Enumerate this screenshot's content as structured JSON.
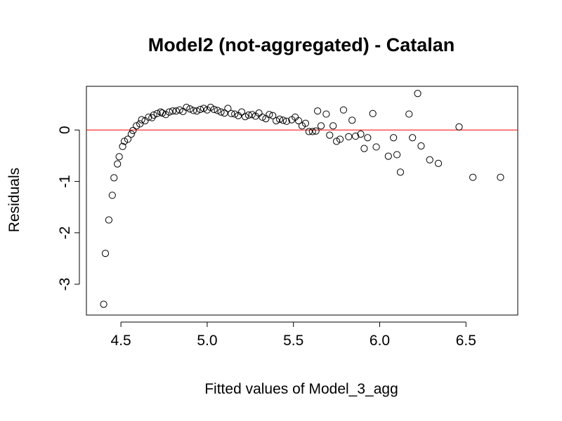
{
  "chart_data": {
    "type": "scatter",
    "title": "Model2 (not-aggregated) - Catalan",
    "xlabel": "Fitted values of Model_3_agg",
    "ylabel": "Residuals",
    "xlim": [
      4.3,
      6.8
    ],
    "ylim": [
      -3.6,
      0.85
    ],
    "x_ticks": [
      4.5,
      5.0,
      5.5,
      6.0,
      6.5
    ],
    "x_tick_labels": [
      "4.5",
      "5.0",
      "5.5",
      "6.0",
      "6.5"
    ],
    "y_ticks": [
      -3,
      -2,
      -1,
      0
    ],
    "y_tick_labels": [
      "-3",
      "-2",
      "-1",
      "0"
    ],
    "grid": false,
    "legend": "none",
    "reference_line": {
      "y": 0,
      "color": "#ff0000"
    },
    "marker_color": "#000000",
    "points": [
      [
        4.4,
        -3.39
      ],
      [
        4.41,
        -2.4
      ],
      [
        4.43,
        -1.75
      ],
      [
        4.45,
        -1.27
      ],
      [
        4.46,
        -0.93
      ],
      [
        4.48,
        -0.66
      ],
      [
        4.49,
        -0.52
      ],
      [
        4.51,
        -0.32
      ],
      [
        4.52,
        -0.22
      ],
      [
        4.54,
        -0.18
      ],
      [
        4.56,
        -0.08
      ],
      [
        4.57,
        -0.01
      ],
      [
        4.59,
        0.08
      ],
      [
        4.61,
        0.12
      ],
      [
        4.62,
        0.2
      ],
      [
        4.64,
        0.18
      ],
      [
        4.66,
        0.25
      ],
      [
        4.68,
        0.24
      ],
      [
        4.69,
        0.29
      ],
      [
        4.71,
        0.32
      ],
      [
        4.73,
        0.35
      ],
      [
        4.74,
        0.33
      ],
      [
        4.76,
        0.3
      ],
      [
        4.78,
        0.35
      ],
      [
        4.8,
        0.37
      ],
      [
        4.82,
        0.37
      ],
      [
        4.84,
        0.39
      ],
      [
        4.86,
        0.36
      ],
      [
        4.88,
        0.44
      ],
      [
        4.9,
        0.41
      ],
      [
        4.92,
        0.38
      ],
      [
        4.94,
        0.37
      ],
      [
        4.96,
        0.4
      ],
      [
        4.98,
        0.42
      ],
      [
        5.0,
        0.39
      ],
      [
        5.02,
        0.44
      ],
      [
        5.04,
        0.4
      ],
      [
        5.06,
        0.38
      ],
      [
        5.08,
        0.35
      ],
      [
        5.1,
        0.33
      ],
      [
        5.12,
        0.42
      ],
      [
        5.14,
        0.32
      ],
      [
        5.16,
        0.31
      ],
      [
        5.18,
        0.28
      ],
      [
        5.2,
        0.35
      ],
      [
        5.22,
        0.26
      ],
      [
        5.24,
        0.29
      ],
      [
        5.26,
        0.3
      ],
      [
        5.28,
        0.27
      ],
      [
        5.3,
        0.33
      ],
      [
        5.32,
        0.25
      ],
      [
        5.34,
        0.22
      ],
      [
        5.36,
        0.3
      ],
      [
        5.38,
        0.28
      ],
      [
        5.4,
        0.18
      ],
      [
        5.42,
        0.21
      ],
      [
        5.44,
        0.19
      ],
      [
        5.46,
        0.17
      ],
      [
        5.49,
        0.2
      ],
      [
        5.51,
        0.25
      ],
      [
        5.53,
        0.18
      ],
      [
        5.55,
        0.08
      ],
      [
        5.57,
        0.13
      ],
      [
        5.59,
        -0.03
      ],
      [
        5.61,
        -0.03
      ],
      [
        5.63,
        -0.02
      ],
      [
        5.64,
        0.37
      ],
      [
        5.66,
        0.08
      ],
      [
        5.69,
        0.31
      ],
      [
        5.71,
        -0.1
      ],
      [
        5.73,
        0.08
      ],
      [
        5.75,
        -0.22
      ],
      [
        5.77,
        -0.18
      ],
      [
        5.79,
        0.39
      ],
      [
        5.82,
        -0.13
      ],
      [
        5.84,
        0.19
      ],
      [
        5.86,
        -0.12
      ],
      [
        5.89,
        -0.08
      ],
      [
        5.91,
        -0.36
      ],
      [
        5.93,
        -0.15
      ],
      [
        5.96,
        0.32
      ],
      [
        5.98,
        -0.33
      ],
      [
        6.05,
        -0.51
      ],
      [
        6.08,
        -0.15
      ],
      [
        6.1,
        -0.48
      ],
      [
        6.12,
        -0.82
      ],
      [
        6.17,
        0.31
      ],
      [
        6.19,
        -0.15
      ],
      [
        6.22,
        0.71
      ],
      [
        6.24,
        -0.31
      ],
      [
        6.29,
        -0.58
      ],
      [
        6.34,
        -0.65
      ],
      [
        6.46,
        0.06
      ],
      [
        6.54,
        -0.92
      ],
      [
        6.7,
        -0.92
      ]
    ]
  }
}
